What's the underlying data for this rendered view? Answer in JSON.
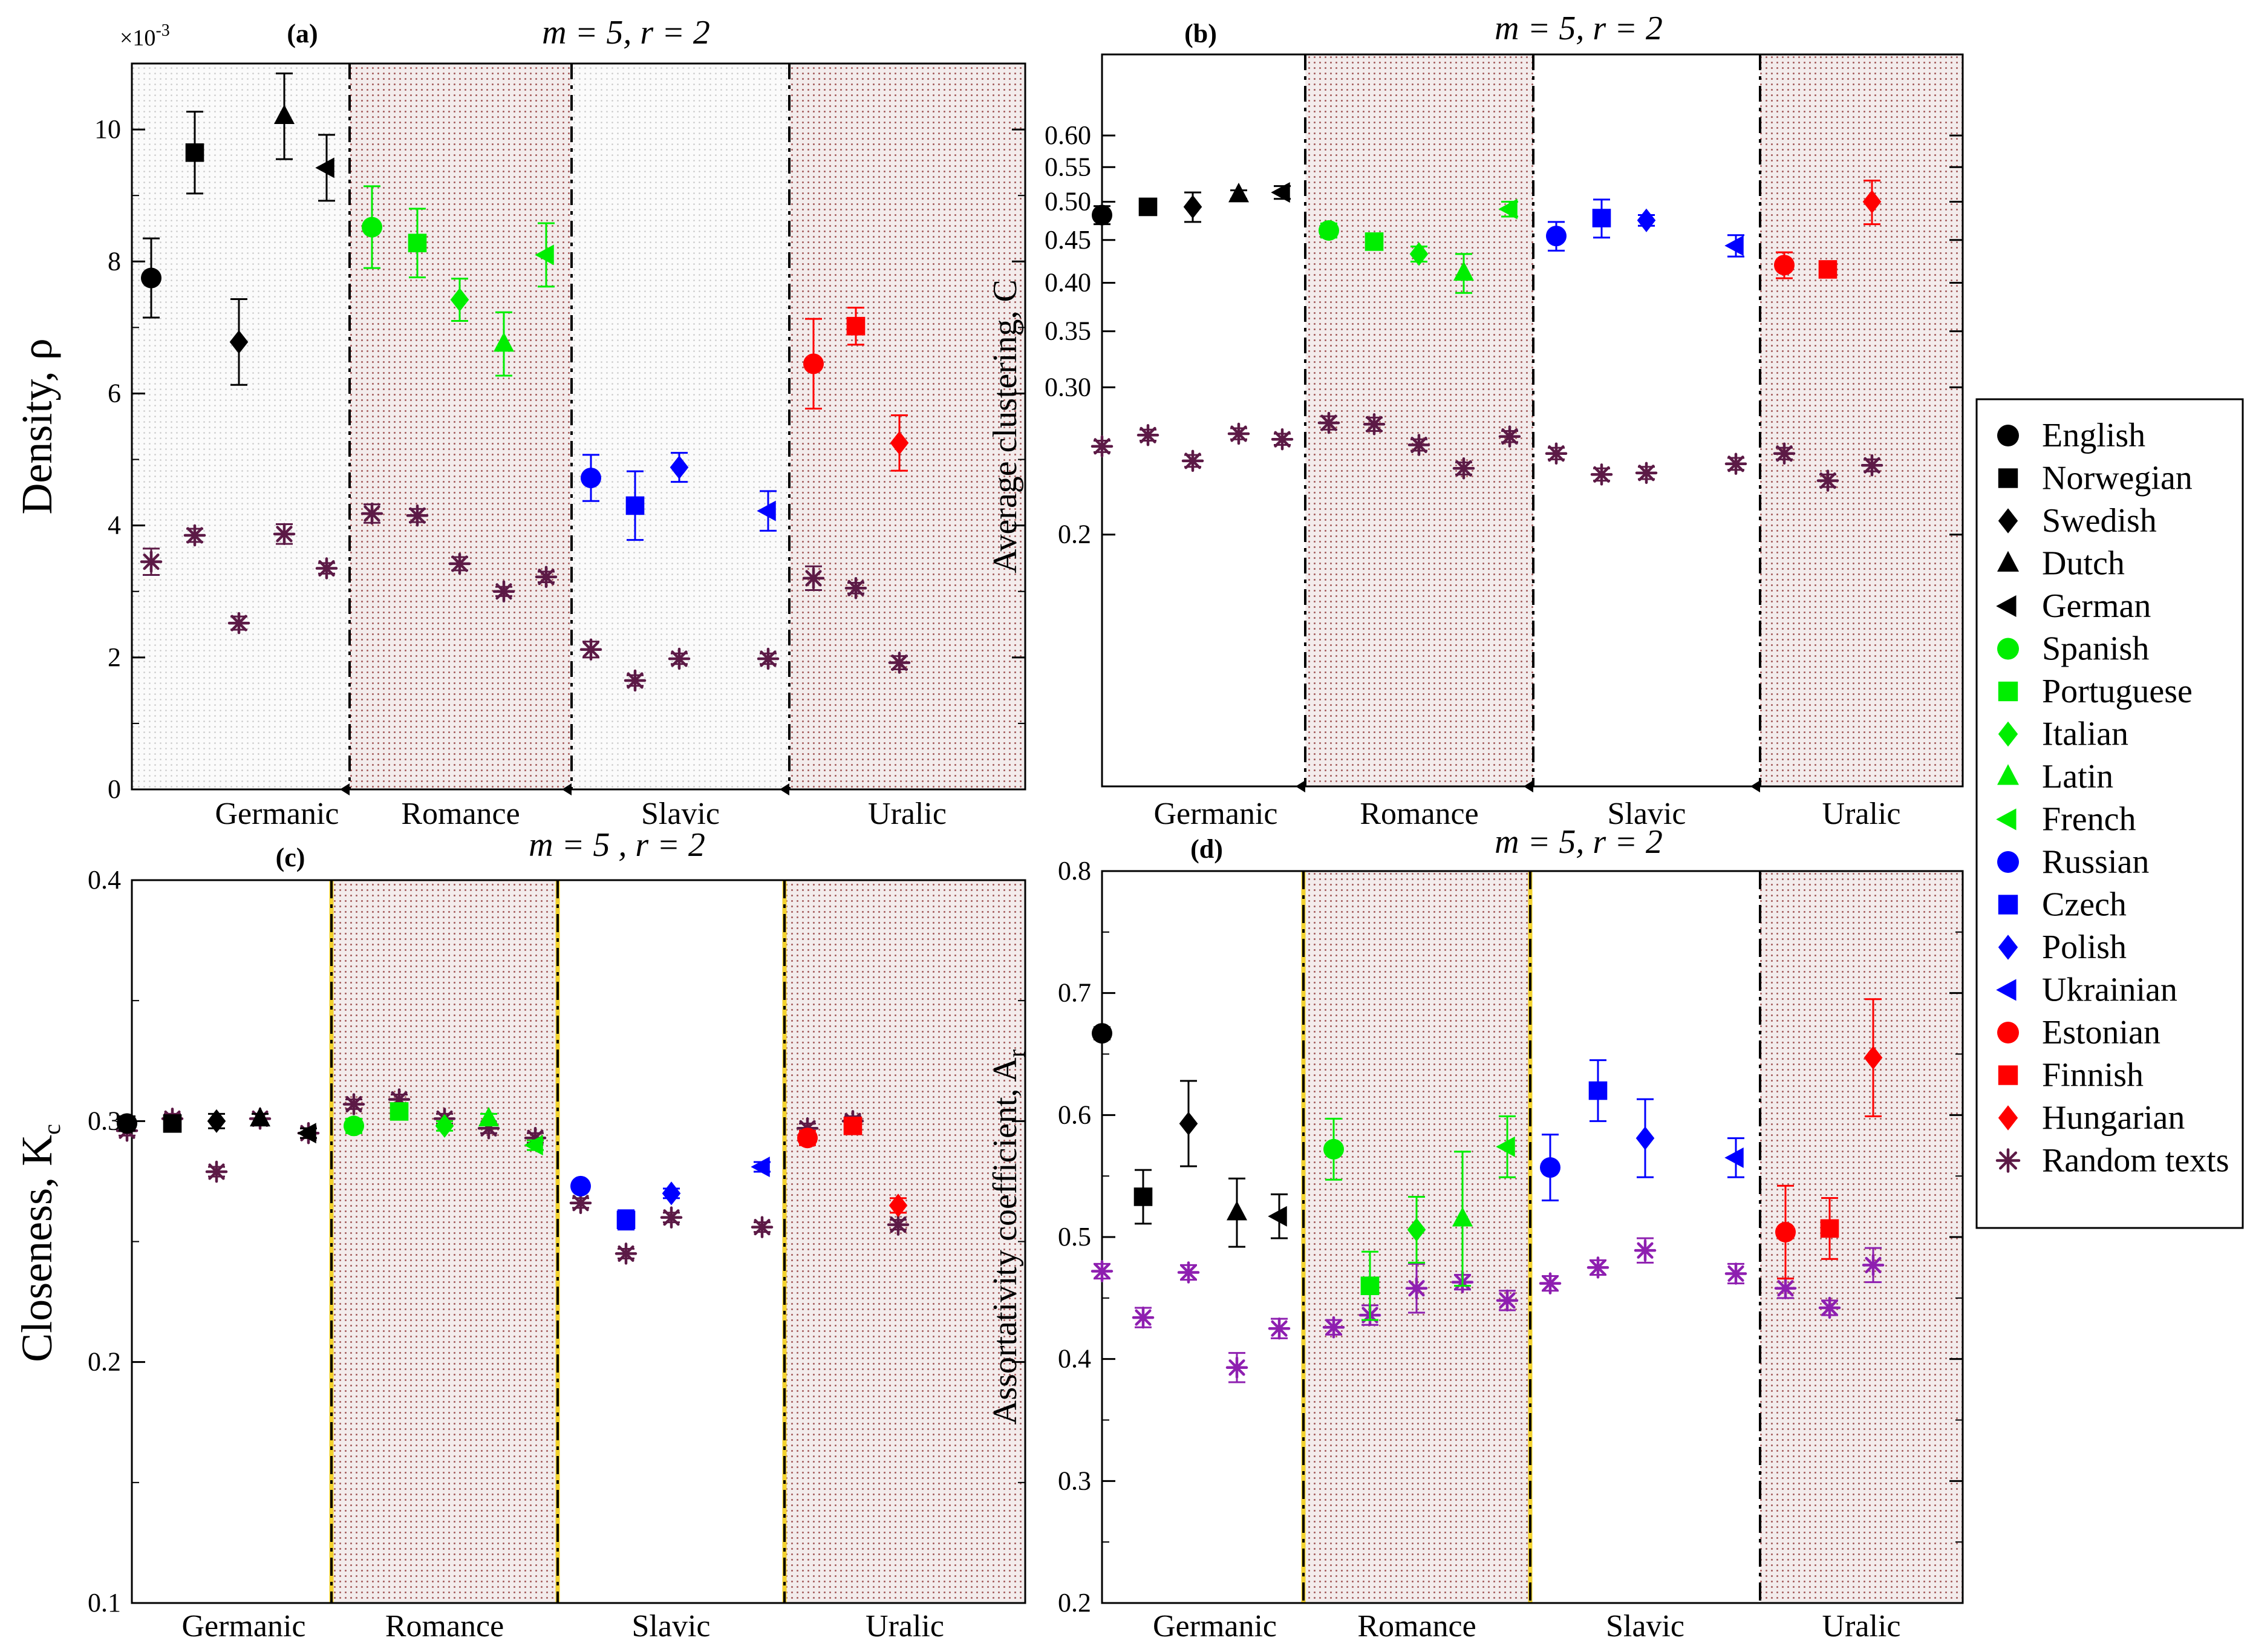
{
  "legend": {
    "entries": [
      {
        "name": "English",
        "marker": "circle",
        "color": "#000000"
      },
      {
        "name": "Norwegian",
        "marker": "square",
        "color": "#000000"
      },
      {
        "name": "Swedish",
        "marker": "diamond",
        "color": "#000000"
      },
      {
        "name": "Dutch",
        "marker": "triangle-up",
        "color": "#000000"
      },
      {
        "name": "German",
        "marker": "triangle-left",
        "color": "#000000"
      },
      {
        "name": "Spanish",
        "marker": "circle",
        "color": "#00ee00"
      },
      {
        "name": "Portuguese",
        "marker": "square",
        "color": "#00ee00"
      },
      {
        "name": "Italian",
        "marker": "diamond",
        "color": "#00ee00"
      },
      {
        "name": "Latin",
        "marker": "triangle-up",
        "color": "#00ee00"
      },
      {
        "name": "French",
        "marker": "triangle-left",
        "color": "#00ee00"
      },
      {
        "name": "Russian",
        "marker": "circle",
        "color": "#0000ff"
      },
      {
        "name": "Czech",
        "marker": "square",
        "color": "#0000ff"
      },
      {
        "name": "Polish",
        "marker": "diamond",
        "color": "#0000ff"
      },
      {
        "name": "Ukrainian",
        "marker": "triangle-left",
        "color": "#0000ff"
      },
      {
        "name": "Estonian",
        "marker": "circle",
        "color": "#ff0000"
      },
      {
        "name": "Finnish",
        "marker": "square",
        "color": "#ff0000"
      },
      {
        "name": "Hungarian",
        "marker": "diamond",
        "color": "#ff0000"
      },
      {
        "name": "Random texts",
        "marker": "asterisk",
        "color": "#5c1a46"
      }
    ]
  },
  "chart_data": [
    {
      "panel": "(a)",
      "type": "scatter",
      "title": "m = 5, r = 2",
      "ylabel": "Density,  ρ",
      "exponent_label": "×10",
      "exponent_power": "-3",
      "ylim": [
        0,
        11
      ],
      "yticks": [
        0,
        2,
        4,
        6,
        8,
        10
      ],
      "ytick_labels": [
        "0",
        "2",
        "4",
        "6",
        "8",
        "10"
      ],
      "scale": "linear",
      "groups": [
        "Germanic",
        "Romance",
        "Slavic",
        "Uralic"
      ],
      "separator_style": "dashdot-black",
      "random_color": "#5c1a46",
      "languages": [
        {
          "lang": "English",
          "y": 7.75,
          "err": 0.6,
          "ry": 3.45,
          "rerr": 0.2
        },
        {
          "lang": "Norwegian",
          "y": 9.65,
          "err": 0.62,
          "ry": 3.85,
          "rerr": 0.1
        },
        {
          "lang": "Swedish",
          "y": 6.78,
          "err": 0.65,
          "ry": 2.52,
          "rerr": 0.1
        },
        {
          "lang": "Dutch",
          "y": 10.2,
          "err": 0.65,
          "ry": 3.87,
          "rerr": 0.15
        },
        {
          "lang": "German",
          "y": 9.42,
          "err": 0.5,
          "ry": 3.35,
          "rerr": 0.08
        },
        {
          "lang": "Spanish",
          "y": 8.52,
          "err": 0.62,
          "ry": 4.18,
          "rerr": 0.14
        },
        {
          "lang": "Portuguese",
          "y": 8.28,
          "err": 0.52,
          "ry": 4.15,
          "rerr": 0.1
        },
        {
          "lang": "Italian",
          "y": 7.42,
          "err": 0.32,
          "ry": 3.42,
          "rerr": 0.1
        },
        {
          "lang": "Latin",
          "y": 6.75,
          "err": 0.48,
          "ry": 3.0,
          "rerr": 0.07
        },
        {
          "lang": "French",
          "y": 8.1,
          "err": 0.48,
          "ry": 3.22,
          "rerr": 0.08
        },
        {
          "lang": "Russian",
          "y": 4.72,
          "err": 0.35,
          "ry": 2.12,
          "rerr": 0.12
        },
        {
          "lang": "Czech",
          "y": 4.3,
          "err": 0.52,
          "ry": 1.65,
          "rerr": 0.08
        },
        {
          "lang": "Polish",
          "y": 4.88,
          "err": 0.22,
          "ry": 1.98,
          "rerr": 0.08
        },
        {
          "lang": "Ukrainian",
          "y": 4.22,
          "err": 0.3,
          "ry": 1.98,
          "rerr": 0.08
        },
        {
          "lang": "Estonian",
          "y": 6.45,
          "err": 0.68,
          "ry": 3.2,
          "rerr": 0.18
        },
        {
          "lang": "Finnish",
          "y": 7.02,
          "err": 0.28,
          "ry": 3.05,
          "rerr": 0.08
        },
        {
          "lang": "Hungarian",
          "y": 5.25,
          "err": 0.42,
          "ry": 1.92,
          "rerr": 0.1
        }
      ]
    },
    {
      "panel": "(b)",
      "type": "scatter",
      "title": "m = 5, r = 2",
      "ylabel": "Average clustering,  C",
      "ylim": [
        0.1,
        0.75
      ],
      "yticks": [
        0.2,
        0.3,
        0.35,
        0.4,
        0.45,
        0.5,
        0.55,
        0.6
      ],
      "ytick_labels": [
        "0.2",
        "0.30",
        "0.35",
        "0.40",
        "0.45",
        "0.50",
        "0.55",
        "0.60"
      ],
      "scale": "log",
      "groups": [
        "Germanic",
        "Romance",
        "Slavic",
        "Uralic"
      ],
      "separator_style": "dashdot-black",
      "random_color": "#5c1a46",
      "languages": [
        {
          "lang": "English",
          "y": 0.482,
          "err": 0.012,
          "ry": 0.255,
          "rerr": 0.004
        },
        {
          "lang": "Norwegian",
          "y": 0.493,
          "err": 0.01,
          "ry": 0.263,
          "rerr": 0.004
        },
        {
          "lang": "Swedish",
          "y": 0.493,
          "err": 0.02,
          "ry": 0.245,
          "rerr": 0.004
        },
        {
          "lang": "Dutch",
          "y": 0.51,
          "err": 0.006,
          "ry": 0.264,
          "rerr": 0.004
        },
        {
          "lang": "German",
          "y": 0.513,
          "err": 0.009,
          "ry": 0.26,
          "rerr": 0.004
        },
        {
          "lang": "Spanish",
          "y": 0.462,
          "err": 0.009,
          "ry": 0.272,
          "rerr": 0.005
        },
        {
          "lang": "Portuguese",
          "y": 0.448,
          "err": 0.008,
          "ry": 0.271,
          "rerr": 0.005
        },
        {
          "lang": "Italian",
          "y": 0.433,
          "err": 0.009,
          "ry": 0.256,
          "rerr": 0.004
        },
        {
          "lang": "Latin",
          "y": 0.411,
          "err": 0.022,
          "ry": 0.24,
          "rerr": 0.004
        },
        {
          "lang": "French",
          "y": 0.49,
          "err": 0.01,
          "ry": 0.262,
          "rerr": 0.004
        },
        {
          "lang": "Russian",
          "y": 0.455,
          "err": 0.018,
          "ry": 0.25,
          "rerr": 0.004
        },
        {
          "lang": "Czech",
          "y": 0.478,
          "err": 0.025,
          "ry": 0.236,
          "rerr": 0.004
        },
        {
          "lang": "Polish",
          "y": 0.475,
          "err": 0.007,
          "ry": 0.237,
          "rerr": 0.004
        },
        {
          "lang": "Ukrainian",
          "y": 0.443,
          "err": 0.013,
          "ry": 0.243,
          "rerr": 0.004
        },
        {
          "lang": "Estonian",
          "y": 0.42,
          "err": 0.015,
          "ry": 0.25,
          "rerr": 0.004
        },
        {
          "lang": "Finnish",
          "y": 0.415,
          "err": 0.008,
          "ry": 0.232,
          "rerr": 0.004
        },
        {
          "lang": "Hungarian",
          "y": 0.5,
          "err": 0.03,
          "ry": 0.242,
          "rerr": 0.004
        }
      ]
    },
    {
      "panel": "(c)",
      "type": "scatter",
      "title": "m = 5 , r = 2",
      "ylabel": "Closeness, K",
      "ylabel_sub": "c",
      "ylim": [
        0.1,
        0.4
      ],
      "yticks": [
        0.1,
        0.2,
        0.3,
        0.4
      ],
      "ytick_labels": [
        "0.1",
        "0.2",
        "0.3",
        "0.4"
      ],
      "scale": "linear",
      "groups": [
        "Germanic",
        "Romance",
        "Slavic",
        "Uralic"
      ],
      "separator_style": "dash-yellow",
      "random_color": "#5c1a46",
      "languages": [
        {
          "lang": "English",
          "y": 0.299,
          "err": 0.003,
          "ry": 0.296,
          "rerr": 0.002
        },
        {
          "lang": "Norwegian",
          "y": 0.299,
          "err": 0.003,
          "ry": 0.301,
          "rerr": 0.002
        },
        {
          "lang": "Swedish",
          "y": 0.3,
          "err": 0.003,
          "ry": 0.279,
          "rerr": 0.002
        },
        {
          "lang": "Dutch",
          "y": 0.301,
          "err": 0.002,
          "ry": 0.301,
          "rerr": 0.002
        },
        {
          "lang": "German",
          "y": 0.295,
          "err": 0.002,
          "ry": 0.295,
          "rerr": 0.002
        },
        {
          "lang": "Spanish",
          "y": 0.298,
          "err": 0.003,
          "ry": 0.307,
          "rerr": 0.002
        },
        {
          "lang": "Portuguese",
          "y": 0.304,
          "err": 0.003,
          "ry": 0.309,
          "rerr": 0.002
        },
        {
          "lang": "Italian",
          "y": 0.298,
          "err": 0.002,
          "ry": 0.301,
          "rerr": 0.002
        },
        {
          "lang": "Latin",
          "y": 0.301,
          "err": 0.002,
          "ry": 0.297,
          "rerr": 0.002
        },
        {
          "lang": "French",
          "y": 0.29,
          "err": 0.002,
          "ry": 0.293,
          "rerr": 0.002
        },
        {
          "lang": "Russian",
          "y": 0.273,
          "err": 0.002,
          "ry": 0.266,
          "rerr": 0.002
        },
        {
          "lang": "Czech",
          "y": 0.259,
          "err": 0.004,
          "ry": 0.245,
          "rerr": 0.002
        },
        {
          "lang": "Polish",
          "y": 0.27,
          "err": 0.002,
          "ry": 0.26,
          "rerr": 0.002
        },
        {
          "lang": "Ukrainian",
          "y": 0.281,
          "err": 0.002,
          "ry": 0.256,
          "rerr": 0.002
        },
        {
          "lang": "Estonian",
          "y": 0.293,
          "err": 0.003,
          "ry": 0.297,
          "rerr": 0.002
        },
        {
          "lang": "Finnish",
          "y": 0.298,
          "err": 0.002,
          "ry": 0.3,
          "rerr": 0.002
        },
        {
          "lang": "Hungarian",
          "y": 0.265,
          "err": 0.003,
          "ry": 0.257,
          "rerr": 0.002
        }
      ]
    },
    {
      "panel": "(d)",
      "type": "scatter",
      "title": "m = 5, r = 2",
      "ylabel": "Assortativity coefficient,  A",
      "ylabel_sub": "r",
      "ylim": [
        0.2,
        0.8
      ],
      "yticks": [
        0.2,
        0.3,
        0.4,
        0.5,
        0.6,
        0.7,
        0.8
      ],
      "ytick_labels": [
        "0.2",
        "0.3",
        "0.4",
        "0.5",
        "0.6",
        "0.7",
        "0.8"
      ],
      "scale": "linear",
      "groups": [
        "Germanic",
        "Romance",
        "Slavic",
        "Uralic"
      ],
      "separator_style": "dash-yellow-first",
      "random_color": "#8e1fb0",
      "languages": [
        {
          "lang": "English",
          "y": 0.667,
          "err": 0.005,
          "ry": 0.472,
          "rerr": 0.006
        },
        {
          "lang": "Norwegian",
          "y": 0.533,
          "err": 0.022,
          "ry": 0.434,
          "rerr": 0.008
        },
        {
          "lang": "Swedish",
          "y": 0.593,
          "err": 0.035,
          "ry": 0.471,
          "rerr": 0.006
        },
        {
          "lang": "Dutch",
          "y": 0.52,
          "err": 0.028,
          "ry": 0.393,
          "rerr": 0.012
        },
        {
          "lang": "German",
          "y": 0.517,
          "err": 0.018,
          "ry": 0.425,
          "rerr": 0.008
        },
        {
          "lang": "Spanish",
          "y": 0.572,
          "err": 0.025,
          "ry": 0.426,
          "rerr": 0.006
        },
        {
          "lang": "Portuguese",
          "y": 0.46,
          "err": 0.028,
          "ry": 0.436,
          "rerr": 0.008
        },
        {
          "lang": "Italian",
          "y": 0.506,
          "err": 0.027,
          "ry": 0.458,
          "rerr": 0.02
        },
        {
          "lang": "Latin",
          "y": 0.515,
          "err": 0.055,
          "ry": 0.463,
          "rerr": 0.006
        },
        {
          "lang": "French",
          "y": 0.574,
          "err": 0.025,
          "ry": 0.448,
          "rerr": 0.008
        },
        {
          "lang": "Russian",
          "y": 0.557,
          "err": 0.027,
          "ry": 0.462,
          "rerr": 0.006
        },
        {
          "lang": "Czech",
          "y": 0.62,
          "err": 0.025,
          "ry": 0.475,
          "rerr": 0.006
        },
        {
          "lang": "Polish",
          "y": 0.581,
          "err": 0.032,
          "ry": 0.489,
          "rerr": 0.01
        },
        {
          "lang": "Ukrainian",
          "y": 0.565,
          "err": 0.016,
          "ry": 0.47,
          "rerr": 0.008
        },
        {
          "lang": "Estonian",
          "y": 0.504,
          "err": 0.038,
          "ry": 0.458,
          "rerr": 0.008
        },
        {
          "lang": "Finnish",
          "y": 0.507,
          "err": 0.025,
          "ry": 0.442,
          "rerr": 0.006
        },
        {
          "lang": "Hungarian",
          "y": 0.647,
          "err": 0.048,
          "ry": 0.477,
          "rerr": 0.014
        }
      ]
    }
  ]
}
